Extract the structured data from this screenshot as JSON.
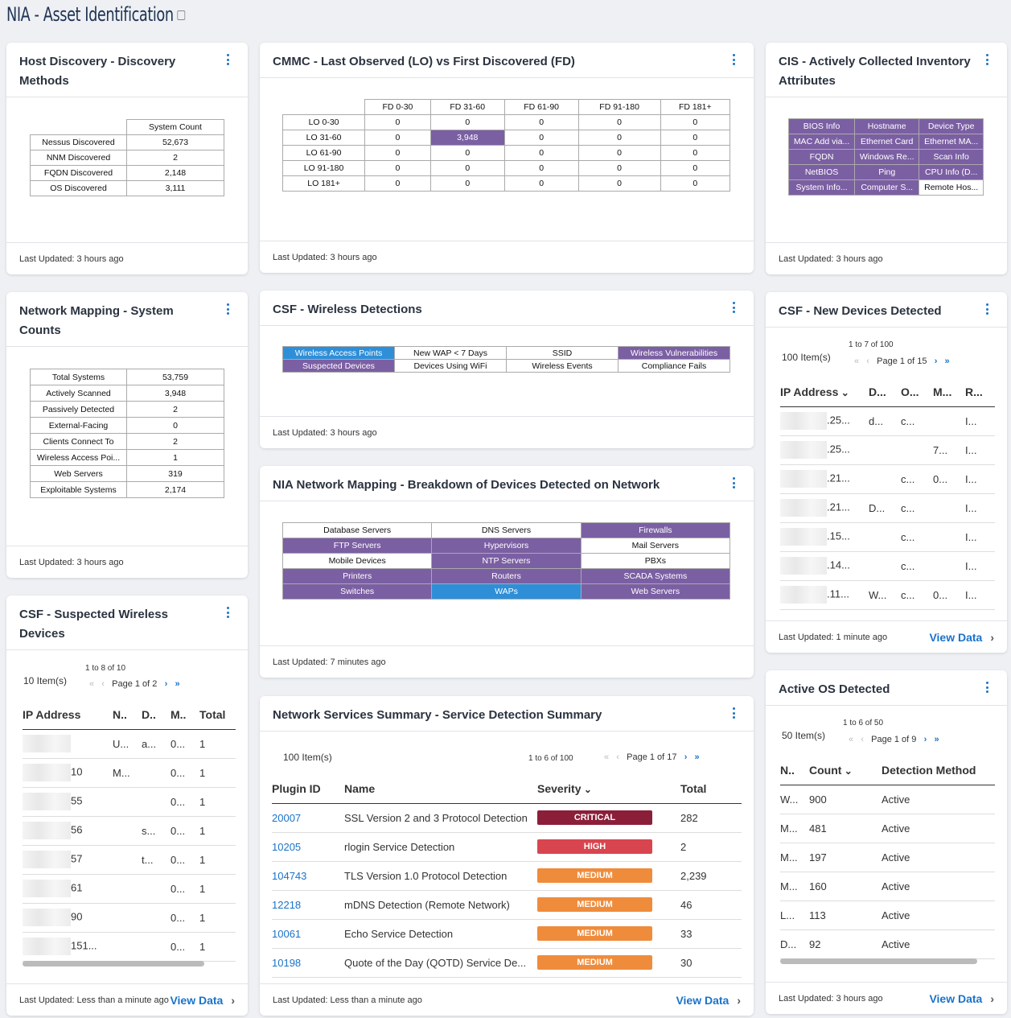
{
  "page": {
    "title": "NIA - Asset Identification"
  },
  "host": {
    "title": "Host Discovery - Discovery Methods",
    "col": "System Count",
    "rows": [
      [
        "Nessus Discovered",
        "52,673"
      ],
      [
        "NNM Discovered",
        "2"
      ],
      [
        "FQDN Discovered",
        "2,148"
      ],
      [
        "OS Discovered",
        "3,111"
      ]
    ],
    "updated": "Last Updated: 3 hours ago"
  },
  "cmmc": {
    "title": "CMMC - Last Observed (LO) vs First Discovered (FD)",
    "cols": [
      "FD 0-30",
      "FD 31-60",
      "FD 61-90",
      "FD 91-180",
      "FD 181+"
    ],
    "rows": [
      [
        "LO 0-30",
        "0",
        "0",
        "0",
        "0",
        "0"
      ],
      [
        "LO 31-60",
        "0",
        "3,948",
        "0",
        "0",
        "0"
      ],
      [
        "LO 61-90",
        "0",
        "0",
        "0",
        "0",
        "0"
      ],
      [
        "LO 91-180",
        "0",
        "0",
        "0",
        "0",
        "0"
      ],
      [
        "LO 181+",
        "0",
        "0",
        "0",
        "0",
        "0"
      ]
    ],
    "updated": "Last Updated: 3 hours ago"
  },
  "cis": {
    "title": "CIS - Actively Collected Inventory Attributes",
    "rows": [
      [
        "BIOS Info",
        "Hostname",
        "Device Type"
      ],
      [
        "MAC Add via...",
        "Ethernet Card",
        "Ethernet MA..."
      ],
      [
        "FQDN",
        "Windows Re...",
        "Scan Info"
      ],
      [
        "NetBIOS",
        "Ping",
        "CPU Info (D..."
      ],
      [
        "System Info...",
        "Computer S...",
        "Remote Hos..."
      ]
    ],
    "updated": "Last Updated: 3 hours ago"
  },
  "netmap": {
    "title": "Network Mapping - System Counts",
    "rows": [
      [
        "Total Systems",
        "53,759"
      ],
      [
        "Actively Scanned",
        "3,948"
      ],
      [
        "Passively Detected",
        "2"
      ],
      [
        "External-Facing",
        "0"
      ],
      [
        "Clients Connect To",
        "2"
      ],
      [
        "Wireless Access Poi...",
        "1"
      ],
      [
        "Web Servers",
        "319"
      ],
      [
        "Exploitable Systems",
        "2,174"
      ]
    ],
    "updated": "Last Updated: 3 hours ago"
  },
  "wireless": {
    "title": "CSF - Wireless Detections",
    "rows": [
      [
        "Wireless Access Points",
        "New WAP < 7 Days",
        "SSID",
        "Wireless Vulnerabilities"
      ],
      [
        "Suspected Devices",
        "Devices Using WiFi",
        "Wireless Events",
        "Compliance Fails"
      ]
    ],
    "updated": "Last Updated: 3 hours ago"
  },
  "breakdown": {
    "title": "NIA Network Mapping - Breakdown of Devices Detected on Network",
    "rows": [
      [
        "Database Servers",
        "DNS Servers",
        "Firewalls"
      ],
      [
        "FTP Servers",
        "Hypervisors",
        "Mail Servers"
      ],
      [
        "Mobile Devices",
        "NTP Servers",
        "PBXs"
      ],
      [
        "Printers",
        "Routers",
        "SCADA Systems"
      ],
      [
        "Switches",
        "WAPs",
        "Web Servers"
      ]
    ],
    "updated": "Last Updated: 7 minutes ago"
  },
  "newdev": {
    "title": "CSF - New Devices Detected",
    "items": "100 Item(s)",
    "range": "1 to 7 of 100",
    "page": "Page 1 of 15",
    "cols": [
      "IP Address",
      "D...",
      "O...",
      "M...",
      "R..."
    ],
    "rows": [
      [
        ".25...",
        "d...",
        "c...",
        "",
        "I..."
      ],
      [
        ".25...",
        "",
        "",
        "7...",
        "I..."
      ],
      [
        ".21...",
        "",
        "c...",
        "0...",
        "I..."
      ],
      [
        ".21...",
        "D...",
        "c...",
        "",
        "I..."
      ],
      [
        ".15...",
        "",
        "c...",
        "",
        "I..."
      ],
      [
        ".14...",
        "",
        "c...",
        "",
        "I..."
      ],
      [
        ".11...",
        "W...",
        "c...",
        "0...",
        "I..."
      ]
    ],
    "updated": "Last Updated: 1 minute ago",
    "view": "View Data"
  },
  "suspect": {
    "title": "CSF - Suspected Wireless Devices",
    "items": "10 Item(s)",
    "range": "1 to 8 of 10",
    "page": "Page 1 of 2",
    "cols": [
      "IP Address",
      "N..",
      "D..",
      "M..",
      "Total"
    ],
    "rows": [
      [
        "",
        "U...",
        "a...",
        "0...",
        "1"
      ],
      [
        "10",
        "M...",
        "",
        "0...",
        "1"
      ],
      [
        "55",
        "",
        "",
        "0...",
        "1"
      ],
      [
        "56",
        "",
        "s...",
        "0...",
        "1"
      ],
      [
        "57",
        "",
        "t...",
        "0...",
        "1"
      ],
      [
        "61",
        "",
        "",
        "0...",
        "1"
      ],
      [
        "90",
        "",
        "",
        "0...",
        "1"
      ],
      [
        "151...",
        "",
        "",
        "0...",
        "1"
      ]
    ],
    "updated": "Last Updated: Less than a minute ago",
    "view": "View Data"
  },
  "services": {
    "title": "Network Services Summary - Service Detection Summary",
    "items": "100 Item(s)",
    "range": "1 to 6 of 100",
    "page": "Page 1 of 17",
    "cols": [
      "Plugin ID",
      "Name",
      "Severity",
      "Total"
    ],
    "rows": [
      [
        "20007",
        "SSL Version 2 and 3 Protocol Detection",
        "CRITICAL",
        "282"
      ],
      [
        "10205",
        "rlogin Service Detection",
        "HIGH",
        "2"
      ],
      [
        "104743",
        "TLS Version 1.0 Protocol Detection",
        "MEDIUM",
        "2,239"
      ],
      [
        "12218",
        "mDNS Detection (Remote Network)",
        "MEDIUM",
        "46"
      ],
      [
        "10061",
        "Echo Service Detection",
        "MEDIUM",
        "33"
      ],
      [
        "10198",
        "Quote of the Day (QOTD) Service De...",
        "MEDIUM",
        "30"
      ]
    ],
    "sevColors": {
      "CRITICAL": "#8b1f3a",
      "HIGH": "#d9454f",
      "MEDIUM": "#ef8c3c"
    },
    "updated": "Last Updated: Less than a minute ago",
    "view": "View Data"
  },
  "os": {
    "title": "Active OS Detected",
    "items": "50 Item(s)",
    "range": "1 to 6 of 50",
    "page": "Page 1 of 9",
    "cols": [
      "N..",
      "Count",
      "Detection Method"
    ],
    "rows": [
      [
        "W...",
        "900",
        "Active"
      ],
      [
        "M...",
        "481",
        "Active"
      ],
      [
        "M...",
        "197",
        "Active"
      ],
      [
        "M...",
        "160",
        "Active"
      ],
      [
        "L...",
        "113",
        "Active"
      ],
      [
        "D...",
        "92",
        "Active"
      ]
    ],
    "updated": "Last Updated: 3 hours ago",
    "view": "View Data"
  }
}
